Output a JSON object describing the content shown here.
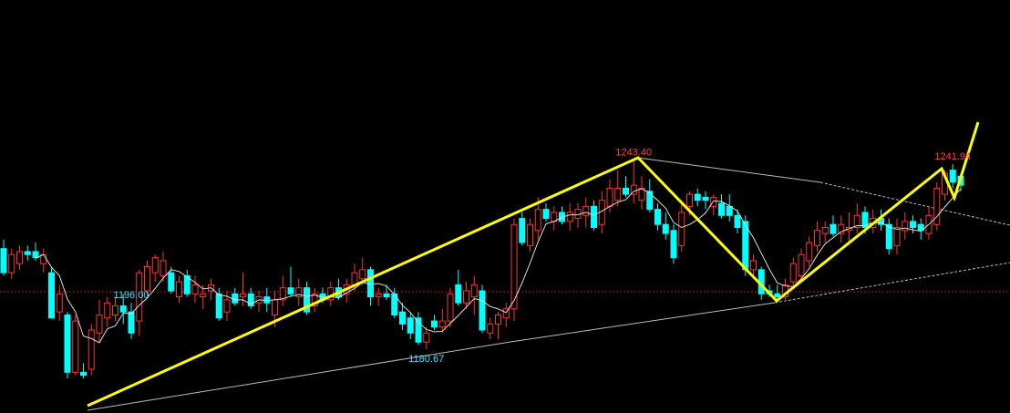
{
  "chart_data": {
    "type": "candlestick",
    "up_color": "#ff3232",
    "down_color": "#00ffff",
    "ylim": [
      1159.5,
      1296.4
    ],
    "candles": [
      [
        1214,
        1217,
        1205,
        1206
      ],
      [
        1206,
        1214,
        1204,
        1212
      ],
      [
        1209,
        1215,
        1207,
        1213
      ],
      [
        1213,
        1215,
        1210,
        1212
      ],
      [
        1213,
        1216,
        1210,
        1211
      ],
      [
        1209,
        1214,
        1206,
        1212
      ],
      [
        1206,
        1208,
        1191,
        1191
      ],
      [
        1193,
        1202,
        1190,
        1199
      ],
      [
        1192,
        1193,
        1171,
        1173
      ],
      [
        1173,
        1192,
        1172,
        1190
      ],
      [
        1173,
        1176,
        1171,
        1172
      ],
      [
        1174,
        1189,
        1172,
        1187
      ],
      [
        1186,
        1197,
        1183,
        1192
      ],
      [
        1191,
        1198,
        1188,
        1196
      ],
      [
        1192,
        1198,
        1190,
        1195
      ],
      [
        1195,
        1199,
        1189,
        1193
      ],
      [
        1193,
        1196,
        1184,
        1186
      ],
      [
        1190,
        1207,
        1185,
        1206
      ],
      [
        1200,
        1210,
        1198,
        1208
      ],
      [
        1206,
        1212,
        1203,
        1211
      ],
      [
        1205,
        1213,
        1203,
        1210
      ],
      [
        1206,
        1208,
        1199,
        1200
      ],
      [
        1198,
        1205,
        1196,
        1203
      ],
      [
        1205,
        1207,
        1198,
        1199
      ],
      [
        1199,
        1205,
        1196,
        1202
      ],
      [
        1198,
        1202,
        1194,
        1199
      ],
      [
        1200,
        1204,
        1197,
        1202
      ],
      [
        1199,
        1201,
        1190,
        1191
      ],
      [
        1193,
        1200,
        1190,
        1197
      ],
      [
        1199,
        1201,
        1195,
        1196
      ],
      [
        1198,
        1206,
        1195,
        1199
      ],
      [
        1199,
        1201,
        1194,
        1195
      ],
      [
        1196,
        1200,
        1193,
        1198
      ],
      [
        1198,
        1201,
        1193,
        1196
      ],
      [
        1192,
        1200,
        1188,
        1197
      ],
      [
        1197,
        1205,
        1195,
        1201
      ],
      [
        1201,
        1208,
        1198,
        1199
      ],
      [
        1198,
        1204,
        1195,
        1201
      ],
      [
        1201,
        1203,
        1192,
        1193
      ],
      [
        1195,
        1201,
        1193,
        1199
      ],
      [
        1199,
        1201,
        1196,
        1197
      ],
      [
        1197,
        1203,
        1195,
        1201
      ],
      [
        1201,
        1204,
        1197,
        1198
      ],
      [
        1199,
        1204,
        1196,
        1202
      ],
      [
        1202,
        1209,
        1200,
        1206
      ],
      [
        1204,
        1211,
        1202,
        1207
      ],
      [
        1207,
        1208,
        1195,
        1198
      ],
      [
        1198,
        1201,
        1195,
        1199
      ],
      [
        1199,
        1202,
        1197,
        1198
      ],
      [
        1199,
        1201,
        1191,
        1192
      ],
      [
        1193,
        1196,
        1187,
        1189
      ],
      [
        1191,
        1193,
        1184,
        1186
      ],
      [
        1191,
        1193,
        1182,
        1183
      ],
      [
        1183,
        1188,
        1180.67,
        1186
      ],
      [
        1190,
        1192,
        1187,
        1188
      ],
      [
        1188,
        1194,
        1186,
        1190
      ],
      [
        1190,
        1201,
        1188,
        1199
      ],
      [
        1202,
        1207,
        1195,
        1196
      ],
      [
        1196,
        1203,
        1194,
        1200
      ],
      [
        1198,
        1205,
        1192,
        1202
      ],
      [
        1200,
        1202,
        1186,
        1187
      ],
      [
        1186,
        1191,
        1184,
        1189
      ],
      [
        1189,
        1193,
        1184,
        1192
      ],
      [
        1191,
        1196,
        1188,
        1194
      ],
      [
        1194,
        1224,
        1190,
        1222
      ],
      [
        1224,
        1226,
        1215,
        1216
      ],
      [
        1215,
        1224,
        1213,
        1222
      ],
      [
        1220,
        1231,
        1217,
        1227
      ],
      [
        1227,
        1229,
        1223,
        1224
      ],
      [
        1223,
        1228,
        1220,
        1226
      ],
      [
        1226,
        1228,
        1222,
        1223
      ],
      [
        1223,
        1229,
        1220,
        1226
      ],
      [
        1224,
        1229,
        1221,
        1227
      ],
      [
        1225,
        1231,
        1221,
        1228
      ],
      [
        1228,
        1230,
        1220,
        1221
      ],
      [
        1222,
        1233,
        1219,
        1230
      ],
      [
        1228,
        1237,
        1226,
        1234
      ],
      [
        1230,
        1240,
        1228,
        1234
      ],
      [
        1234,
        1238,
        1231,
        1232
      ],
      [
        1232,
        1243.4,
        1229,
        1235
      ],
      [
        1230,
        1238,
        1227,
        1234
      ],
      [
        1233,
        1237,
        1226,
        1227
      ],
      [
        1227,
        1229,
        1220,
        1222
      ],
      [
        1222,
        1226,
        1217,
        1219
      ],
      [
        1220,
        1222,
        1209,
        1211
      ],
      [
        1215,
        1229,
        1213,
        1226
      ],
      [
        1228,
        1233,
        1225,
        1232
      ],
      [
        1232,
        1234,
        1228,
        1230
      ],
      [
        1231,
        1233,
        1227,
        1230
      ],
      [
        1228,
        1232,
        1225,
        1231
      ],
      [
        1229,
        1232,
        1224,
        1225
      ],
      [
        1228,
        1232,
        1223,
        1225
      ],
      [
        1225,
        1227,
        1219,
        1221
      ],
      [
        1223,
        1225,
        1205,
        1207
      ],
      [
        1207,
        1212,
        1204,
        1210
      ],
      [
        1207,
        1208,
        1197,
        1199
      ],
      [
        1200,
        1202,
        1198,
        1199
      ],
      [
        1199,
        1202,
        1196,
        1198
      ],
      [
        1198,
        1204,
        1197,
        1202
      ],
      [
        1203,
        1211,
        1201,
        1209
      ],
      [
        1205,
        1214,
        1203,
        1212
      ],
      [
        1210,
        1218,
        1208,
        1216
      ],
      [
        1215,
        1223,
        1213,
        1220
      ],
      [
        1219,
        1223,
        1216,
        1221
      ],
      [
        1222,
        1225,
        1218,
        1219
      ],
      [
        1219,
        1225,
        1216,
        1222
      ],
      [
        1220,
        1226,
        1216,
        1221
      ],
      [
        1221,
        1229,
        1219,
        1225
      ],
      [
        1226,
        1228,
        1219,
        1221
      ],
      [
        1221,
        1227,
        1219,
        1224
      ],
      [
        1224,
        1227,
        1220,
        1222
      ],
      [
        1222,
        1224,
        1212,
        1214
      ],
      [
        1215,
        1224,
        1212,
        1221
      ],
      [
        1220,
        1226,
        1217,
        1223
      ],
      [
        1223,
        1225,
        1219,
        1221
      ],
      [
        1222,
        1224,
        1217,
        1220
      ],
      [
        1219,
        1228,
        1217,
        1225
      ],
      [
        1222,
        1236,
        1220,
        1234
      ],
      [
        1232,
        1240,
        1230,
        1239
      ],
      [
        1240,
        1241.94,
        1234,
        1236
      ],
      [
        1238,
        1239,
        1233,
        1235
      ]
    ],
    "extreme_labels": [
      {
        "value": 1243.4,
        "label": "1243.40",
        "color": "#ff4040"
      },
      {
        "value": 1241.94,
        "label": "1241.94",
        "color": "#ff4040"
      },
      {
        "value": 1196.0,
        "label": "1196.00",
        "color": "#40e0ff"
      },
      {
        "value": 1180.67,
        "label": "1180.67",
        "color": "#40e0ff"
      }
    ]
  }
}
